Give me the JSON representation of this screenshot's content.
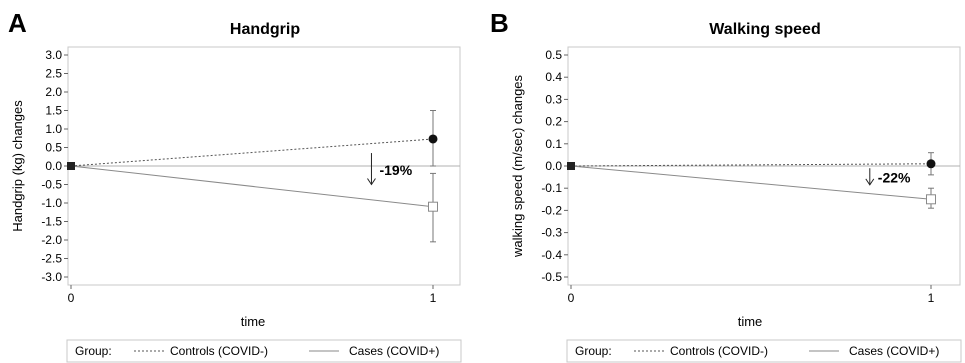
{
  "chart_data": [
    {
      "panel_letter": "A",
      "type": "line",
      "title": "Handgrip",
      "xlabel": "time",
      "ylabel": "Handgrip (kg) changes",
      "x": [
        0,
        1
      ],
      "xticks": [
        "0",
        "1"
      ],
      "ylim": [
        -3.0,
        3.0
      ],
      "yticks": [
        "3.0",
        "2.5",
        "2.0",
        "1.5",
        "1.0",
        "0.5",
        "0.0",
        "-0.5",
        "-1.0",
        "-1.5",
        "-2.0",
        "-2.5",
        "-3.0"
      ],
      "series": [
        {
          "name": "Controls (COVID-)",
          "values": [
            0.0,
            0.73
          ],
          "error_high": [
            null,
            1.5
          ],
          "error_low": [
            null,
            0.0
          ],
          "line_style": "dotted",
          "marker": "filled-circle"
        },
        {
          "name": "Cases (COVID+)",
          "values": [
            0.0,
            -1.1
          ],
          "error_high": [
            null,
            -0.2
          ],
          "error_low": [
            null,
            -2.05
          ],
          "line_style": "solid",
          "marker": "open-square"
        }
      ],
      "annotation": {
        "text": "-19%",
        "x": 0.83,
        "y_from": 0.35,
        "y_to": -0.5
      },
      "legend": {
        "title": "Group:",
        "placement": "bottom"
      }
    },
    {
      "panel_letter": "B",
      "type": "line",
      "title": "Walking speed",
      "xlabel": "time",
      "ylabel": "walking speed (m/sec) changes",
      "x": [
        0,
        1
      ],
      "xticks": [
        "0",
        "1"
      ],
      "ylim": [
        -0.5,
        0.5
      ],
      "yticks": [
        "0.5",
        "0.4",
        "0.3",
        "0.2",
        "0.1",
        "0.0",
        "-0.1",
        "-0.2",
        "-0.3",
        "-0.4",
        "-0.5"
      ],
      "series": [
        {
          "name": "Controls (COVID-)",
          "values": [
            0.0,
            0.01
          ],
          "error_high": [
            null,
            0.06
          ],
          "error_low": [
            null,
            -0.04
          ],
          "line_style": "dotted",
          "marker": "filled-circle"
        },
        {
          "name": "Cases (COVID+)",
          "values": [
            0.0,
            -0.15
          ],
          "error_high": [
            null,
            -0.1
          ],
          "error_low": [
            null,
            -0.19
          ],
          "line_style": "solid",
          "marker": "open-square"
        }
      ],
      "annotation": {
        "text": "-22%",
        "x": 0.83,
        "y_from": -0.01,
        "y_to": -0.085
      },
      "legend": {
        "title": "Group:",
        "placement": "bottom"
      }
    }
  ]
}
